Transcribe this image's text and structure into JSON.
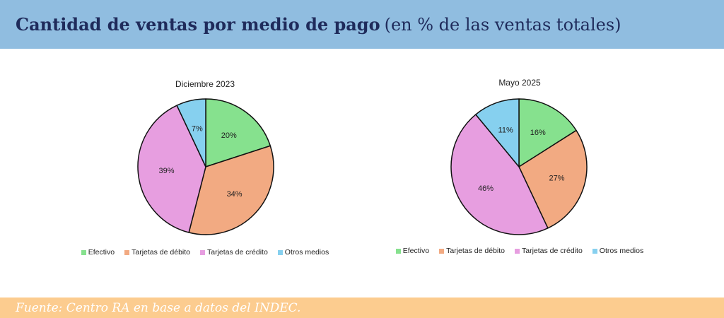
{
  "header": {
    "title_bold": "Cantidad de ventas por medio de pago",
    "title_normal": "(en % de las ventas totales)"
  },
  "footer": {
    "source": "Fuente: Centro RA en base a datos del INDEC."
  },
  "colors": {
    "header_bg": "#90bde0",
    "footer_bg": "#fccc8f",
    "Efectivo": "#86e18e",
    "Tarjetas de débito": "#f2aa82",
    "Tarjetas de crédito": "#e79ee0",
    "Otros medios": "#86d0ef"
  },
  "chart_data": [
    {
      "type": "pie",
      "title": "Diciembre 2023",
      "categories": [
        "Efectivo",
        "Tarjetas de débito",
        "Tarjetas de crédito",
        "Otros medios"
      ],
      "values": [
        20,
        34,
        39,
        7
      ],
      "labels": [
        "20%",
        "34%",
        "39%",
        "7%"
      ],
      "legend_position": "bottom"
    },
    {
      "type": "pie",
      "title": "Mayo 2025",
      "categories": [
        "Efectivo",
        "Tarjetas de débito",
        "Tarjetas de crédito",
        "Otros medios"
      ],
      "values": [
        16,
        27,
        46,
        11
      ],
      "labels": [
        "16%",
        "27%",
        "46%",
        "11%"
      ],
      "legend_position": "bottom"
    }
  ]
}
